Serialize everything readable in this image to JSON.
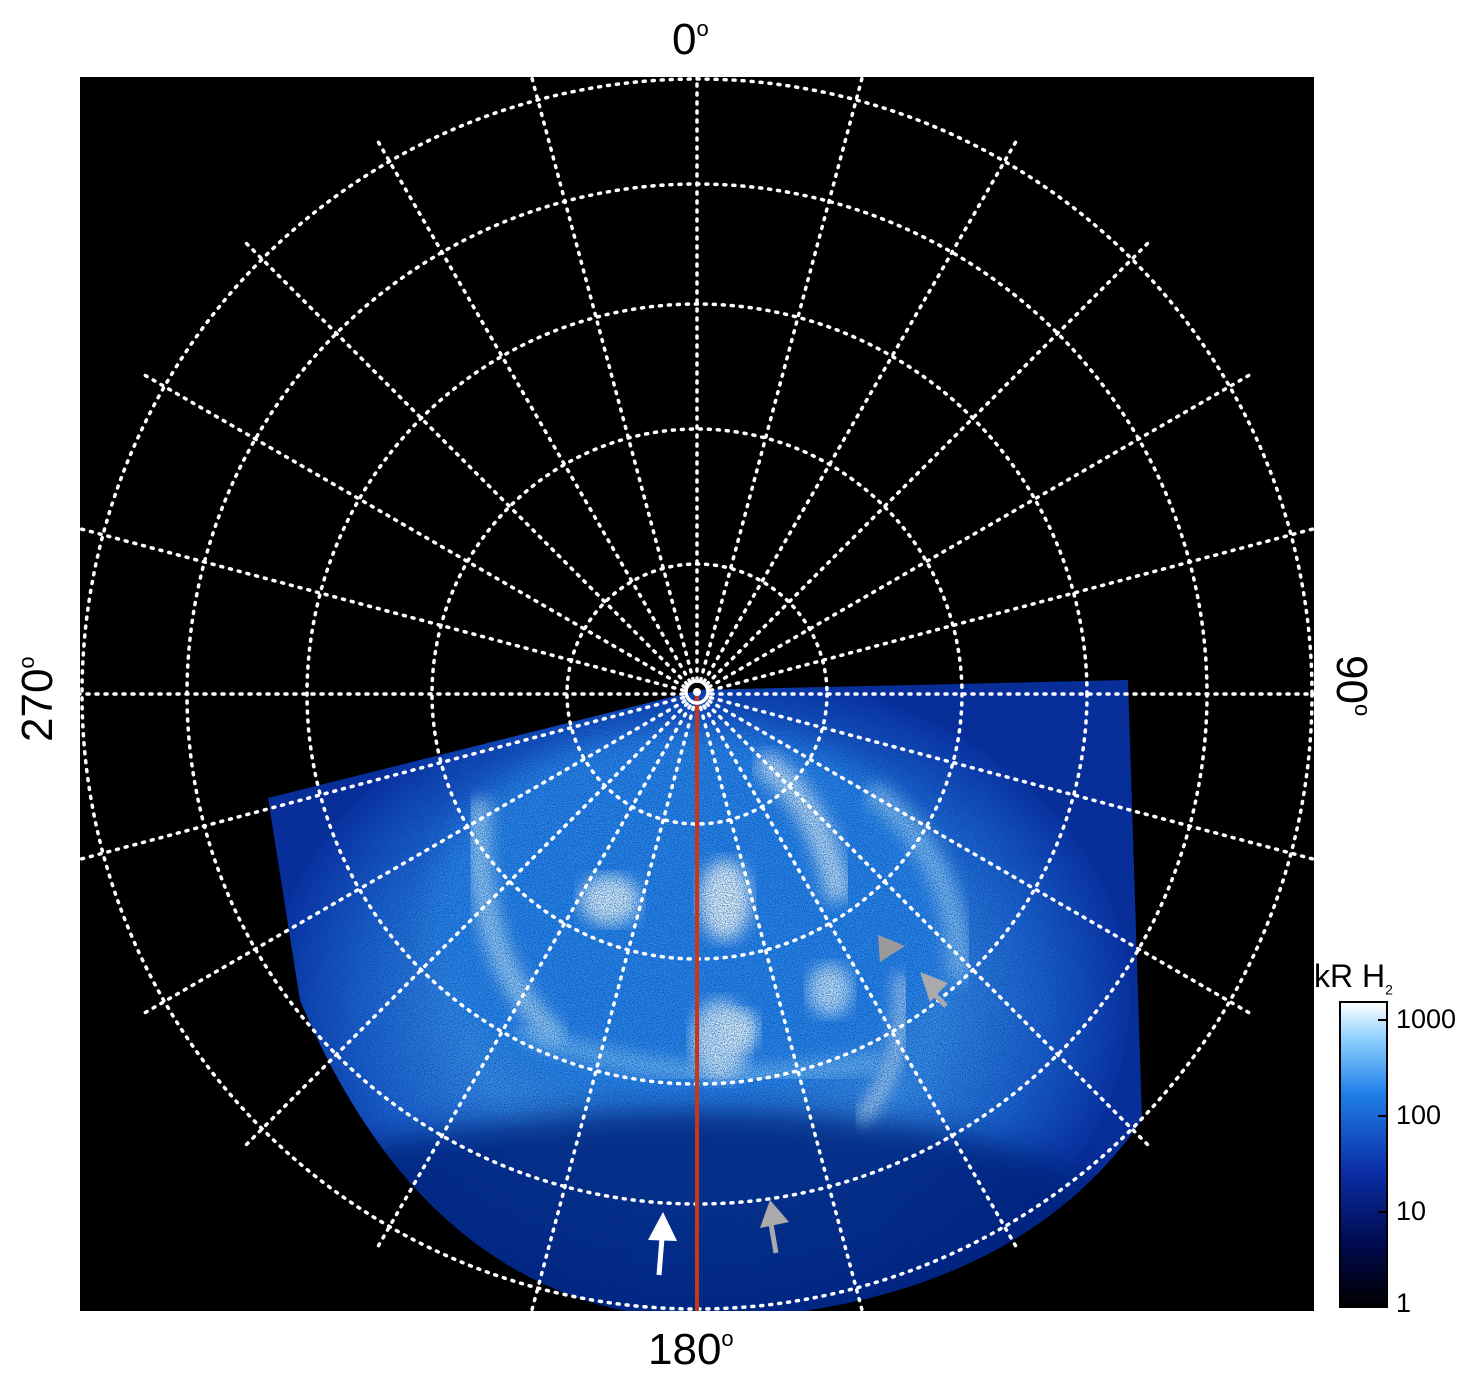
{
  "figure": {
    "azimuth_labels": {
      "top": "0",
      "right": "90",
      "bottom": "180",
      "left": "270",
      "degree_symbol": "o"
    },
    "colorbar": {
      "title": "kR H",
      "title_subscript": "2",
      "scale": "log",
      "ticks": [
        "1000",
        "100",
        "10",
        "1"
      ],
      "color_stops": [
        "#000000",
        "#000a4d",
        "#0b2fa8",
        "#1f7fe8",
        "#8fd0ff",
        "#ffffff"
      ]
    },
    "colors": {
      "background": "#000000",
      "grid": "#ffffff",
      "meridian_line": "#c8371a",
      "arrow_white": "#ffffff",
      "arrow_gray": "#aaaaaa"
    },
    "grid": {
      "style": "dotted",
      "meridians": 24,
      "circles": 6
    }
  }
}
